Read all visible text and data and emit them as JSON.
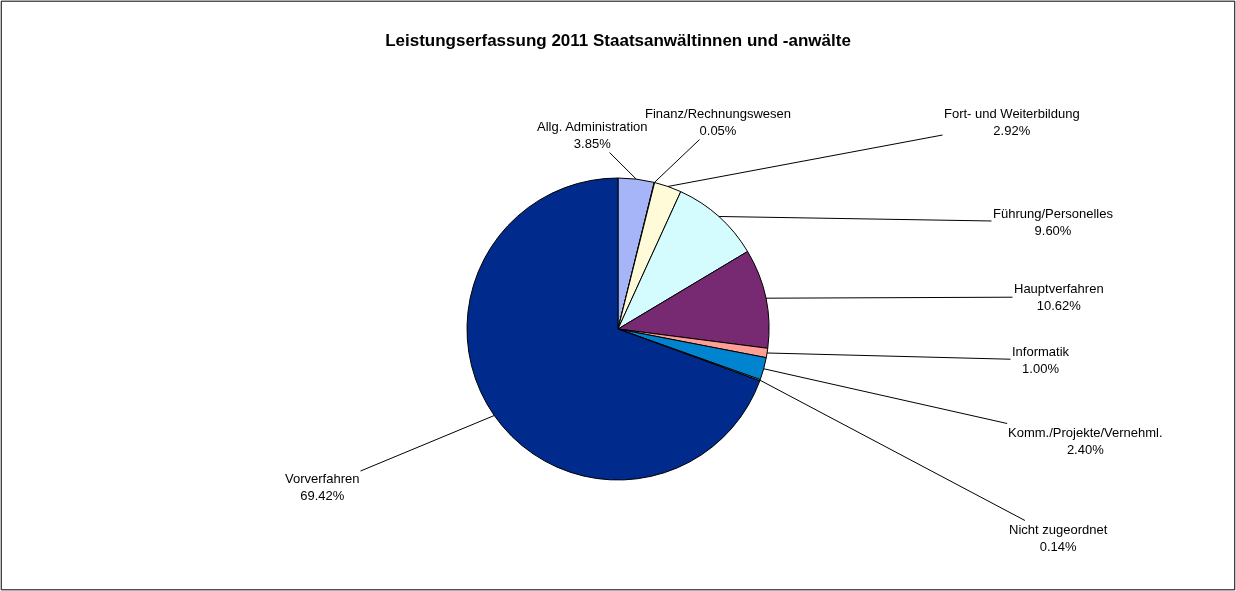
{
  "chart_data": {
    "type": "pie",
    "title": "Leistungserfassung 2011 Staatsanwältinnen und -anwälte",
    "categories": [
      "Allg. Administration",
      "Finanz/Rechnungswesen",
      "Fort- und Weiterbildung",
      "Führung/Personelles",
      "Hauptverfahren",
      "Informatik",
      "Komm./Projekte/Vernehml.",
      "Nicht zugeordnet",
      "Vorverfahren"
    ],
    "values": [
      3.85,
      0.05,
      2.92,
      9.6,
      10.62,
      1.0,
      2.4,
      0.14,
      69.42
    ],
    "value_labels": [
      "3.85%",
      "0.05%",
      "2.92%",
      "9.60%",
      "10.62%",
      "1.00%",
      "2.40%",
      "0.14%",
      "69.42%"
    ],
    "colors": [
      "#a6b4f8",
      "#ccffcc",
      "#fffbd8",
      "#d4fbfd",
      "#772a72",
      "#fe9e94",
      "#0084d0",
      "#ccccff",
      "#002a8c"
    ],
    "legend": false
  }
}
